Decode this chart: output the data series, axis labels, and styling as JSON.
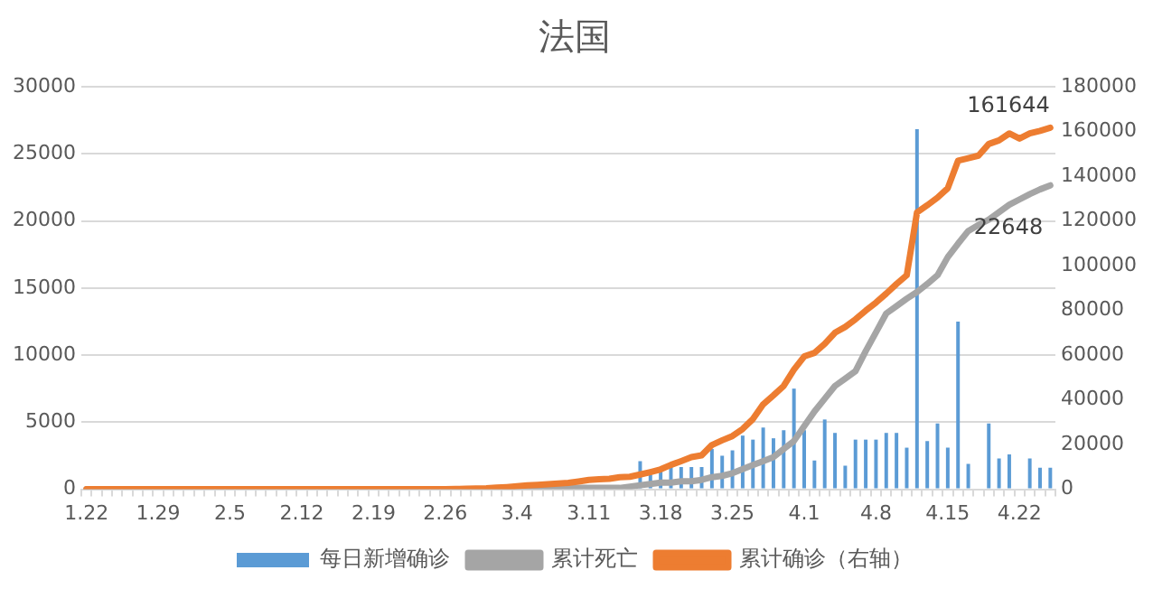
{
  "chart_data": {
    "type": "bar",
    "title": "法国",
    "categories": [
      "1.22",
      null,
      null,
      null,
      null,
      null,
      null,
      "1.29",
      null,
      null,
      null,
      null,
      null,
      null,
      "2.5",
      null,
      null,
      null,
      null,
      null,
      null,
      "2.12",
      null,
      null,
      null,
      null,
      null,
      null,
      "2.19",
      null,
      null,
      null,
      null,
      null,
      null,
      "2.26",
      null,
      null,
      null,
      null,
      null,
      null,
      "3.4",
      null,
      null,
      null,
      null,
      null,
      null,
      "3.11",
      null,
      null,
      null,
      null,
      null,
      null,
      "3.18",
      null,
      null,
      null,
      null,
      null,
      null,
      "3.25",
      null,
      null,
      null,
      null,
      null,
      null,
      "4.1",
      null,
      null,
      null,
      null,
      null,
      null,
      "4.8",
      null,
      null,
      null,
      null,
      null,
      null,
      "4.15",
      null,
      null,
      null,
      null,
      null,
      null,
      "4.22",
      null,
      null,
      null
    ],
    "series": [
      {
        "name": "每日新增确诊",
        "color": "#5b9bd5",
        "axis": "y",
        "values": [
          0,
          0,
          0,
          0,
          0,
          0,
          0,
          0,
          0,
          0,
          0,
          0,
          0,
          0,
          0,
          0,
          0,
          0,
          0,
          0,
          0,
          0,
          0,
          0,
          0,
          0,
          0,
          0,
          0,
          0,
          0,
          0,
          0,
          0,
          0,
          0,
          0,
          0,
          0,
          0,
          0,
          0,
          0,
          0,
          0,
          null,
          null,
          null,
          null,
          null,
          null,
          null,
          null,
          null,
          2100,
          1100,
          1400,
          1650,
          1650,
          1650,
          1650,
          3000,
          2500,
          2900,
          4000,
          3700,
          4600,
          3800,
          4400,
          7500,
          4400,
          2150,
          5200,
          4200,
          1750,
          3700,
          3700,
          3700,
          4200,
          4200,
          3100,
          26840,
          3600,
          4900,
          3100,
          12500,
          1900,
          0,
          4900,
          2300,
          2600,
          0,
          2300,
          1600,
          1600
        ]
      },
      {
        "name": "累计死亡",
        "type": "line",
        "color": "#a5a5a5",
        "axis": "y",
        "values": [
          0,
          0,
          0,
          0,
          0,
          0,
          0,
          0,
          0,
          0,
          0,
          0,
          0,
          0,
          0,
          0,
          0,
          0,
          0,
          0,
          0,
          0,
          0,
          0,
          0,
          0,
          0,
          0,
          0,
          0,
          0,
          0,
          0,
          0,
          0,
          0,
          0,
          0,
          0,
          0,
          0,
          100,
          100,
          100,
          100,
          100,
          100,
          100,
          100,
          100,
          100,
          100,
          100,
          200,
          300,
          400,
          500,
          500,
          600,
          600,
          700,
          900,
          1000,
          1200,
          1500,
          1800,
          2100,
          2400,
          3000,
          3600,
          4700,
          5800,
          6750,
          7700,
          8250,
          8800,
          10300,
          11700,
          13100,
          13650,
          14200,
          14700,
          15300,
          15950,
          17300,
          18300,
          19250,
          19700,
          20100,
          20650,
          21200,
          21600,
          22000,
          22350,
          22648
        ],
        "value_labels": [
          null,
          null,
          null,
          null,
          null,
          null,
          null,
          null,
          null,
          null,
          null,
          null,
          null,
          null,
          null,
          null,
          null,
          null,
          null,
          null,
          null,
          null,
          null,
          null,
          null,
          null,
          null,
          null,
          null,
          null,
          null,
          null,
          null,
          null,
          null,
          null,
          null,
          null,
          null,
          null,
          null,
          null,
          null,
          null,
          null,
          null,
          null,
          null,
          null,
          null,
          null,
          null,
          null,
          null,
          null,
          null,
          null,
          null,
          null,
          null,
          null,
          null,
          null,
          null,
          null,
          null,
          null,
          null,
          null,
          null,
          null,
          null,
          null,
          null,
          null,
          null,
          null,
          null,
          null,
          null,
          null,
          null,
          null,
          null,
          null,
          null,
          null,
          null,
          null,
          null,
          null,
          null,
          null,
          null,
          "22648"
        ]
      },
      {
        "name": "累计确诊（右轴）",
        "type": "line",
        "color": "#ed7d31",
        "axis": "y2",
        "values": [
          0,
          0,
          0,
          0,
          0,
          0,
          0,
          0,
          0,
          0,
          0,
          0,
          0,
          0,
          0,
          0,
          0,
          0,
          0,
          0,
          0,
          0,
          0,
          0,
          0,
          0,
          0,
          0,
          0,
          0,
          0,
          0,
          0,
          0,
          0,
          0,
          100,
          200,
          300,
          400,
          700,
          1000,
          1400,
          1800,
          2000,
          2300,
          2600,
          2900,
          3500,
          4200,
          4500,
          4700,
          5400,
          5600,
          6600,
          7700,
          8900,
          10900,
          12600,
          14400,
          15200,
          19800,
          21900,
          23800,
          27000,
          31400,
          38000,
          42000,
          46200,
          53500,
          59400,
          61000,
          65000,
          70000,
          72600,
          76000,
          79900,
          83500,
          87500,
          91800,
          95700,
          123800,
          127000,
          130400,
          134600,
          146900,
          148000,
          149200,
          154400,
          156000,
          159100,
          156800,
          159100,
          160300,
          161644
        ],
        "value_labels": [
          null,
          null,
          null,
          null,
          null,
          null,
          null,
          null,
          null,
          null,
          null,
          null,
          null,
          null,
          null,
          null,
          null,
          null,
          null,
          null,
          null,
          null,
          null,
          null,
          null,
          null,
          null,
          null,
          null,
          null,
          null,
          null,
          null,
          null,
          null,
          null,
          null,
          null,
          null,
          null,
          null,
          null,
          null,
          null,
          null,
          null,
          null,
          null,
          null,
          null,
          null,
          null,
          null,
          null,
          null,
          null,
          null,
          null,
          null,
          null,
          null,
          null,
          null,
          null,
          null,
          null,
          null,
          null,
          null,
          null,
          null,
          null,
          null,
          null,
          null,
          null,
          null,
          null,
          null,
          null,
          null,
          null,
          null,
          null,
          null,
          null,
          null,
          null,
          null,
          null,
          null,
          null,
          null,
          null,
          "161644"
        ]
      }
    ],
    "ylim": [
      0,
      30000
    ],
    "yticks": [
      0,
      5000,
      10000,
      15000,
      20000,
      25000,
      30000
    ],
    "y2lim": [
      0,
      180000
    ],
    "y2ticks": [
      0,
      20000,
      40000,
      60000,
      80000,
      100000,
      120000,
      140000,
      160000,
      180000
    ],
    "grid": "y",
    "legend": "bottom"
  }
}
